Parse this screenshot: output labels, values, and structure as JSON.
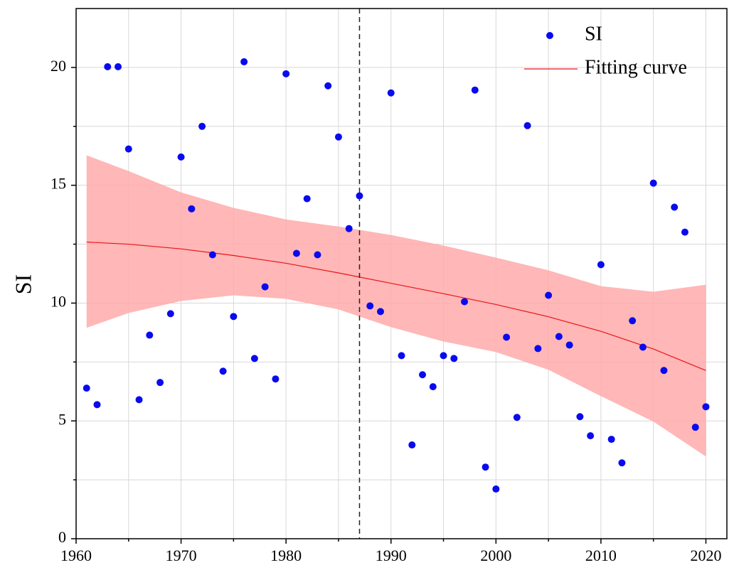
{
  "chart_data": {
    "type": "scatter",
    "y_label": "SI",
    "xlim": [
      1960,
      2022
    ],
    "ylim": [
      0,
      22.5
    ],
    "xticks": [
      1960,
      1970,
      1980,
      1990,
      2000,
      2010,
      2020
    ],
    "yticks": [
      0,
      5,
      10,
      15,
      20
    ],
    "xminorticks": [
      1965,
      1975,
      1985,
      1995,
      2005,
      2015
    ],
    "yminorticks": [
      2.5,
      7.5,
      12.5,
      17.5
    ],
    "grid": true,
    "vline": 1987,
    "legend": "upper right",
    "series": [
      {
        "name": "SI",
        "type": "scatter",
        "color": "#0a0aef",
        "x": [
          1961,
          1962,
          1963,
          1964,
          1965,
          1966,
          1967,
          1968,
          1969,
          1970,
          1971,
          1972,
          1973,
          1974,
          1975,
          1976,
          1977,
          1978,
          1979,
          1980,
          1981,
          1982,
          1983,
          1984,
          1985,
          1986,
          1987,
          1988,
          1989,
          1990,
          1991,
          1992,
          1993,
          1994,
          1995,
          1996,
          1997,
          1998,
          1999,
          2000,
          2001,
          2002,
          2003,
          2004,
          2005,
          2006,
          2007,
          2008,
          2009,
          2010,
          2011,
          2012,
          2013,
          2014,
          2015,
          2016,
          2017,
          2018,
          2019,
          2020
        ],
        "values": [
          6.39,
          5.69,
          20.03,
          20.03,
          16.54,
          5.9,
          8.64,
          6.63,
          9.55,
          16.2,
          14.0,
          17.5,
          12.05,
          7.11,
          9.43,
          20.24,
          7.65,
          10.69,
          6.78,
          19.73,
          12.11,
          14.43,
          12.05,
          19.22,
          17.05,
          13.16,
          14.55,
          9.88,
          9.64,
          18.92,
          7.77,
          3.98,
          6.96,
          6.45,
          7.77,
          7.65,
          10.06,
          19.04,
          3.04,
          2.11,
          8.55,
          5.15,
          17.53,
          8.07,
          10.33,
          8.58,
          8.22,
          5.18,
          4.37,
          11.63,
          4.22,
          3.22,
          9.25,
          8.13,
          15.09,
          7.14,
          14.07,
          13.01,
          4.73,
          5.6
        ]
      },
      {
        "name": "Fitting curve",
        "type": "line",
        "color": "#e8141a",
        "band_color": "#ffaaaa",
        "x": [
          1961,
          1965,
          1970,
          1975,
          1980,
          1985,
          1990,
          1995,
          2000,
          2005,
          2010,
          2015,
          2020
        ],
        "values": [
          12.59,
          12.5,
          12.3,
          12.02,
          11.69,
          11.28,
          10.84,
          10.4,
          9.94,
          9.42,
          8.8,
          8.05,
          7.14
        ],
        "upper": [
          16.27,
          15.6,
          14.7,
          14.04,
          13.55,
          13.25,
          12.89,
          12.44,
          11.93,
          11.39,
          10.72,
          10.48,
          10.78
        ],
        "lower": [
          8.95,
          9.58,
          10.09,
          10.33,
          10.18,
          9.73,
          8.98,
          8.37,
          7.92,
          7.17,
          6.05,
          4.97,
          3.49
        ]
      }
    ]
  }
}
